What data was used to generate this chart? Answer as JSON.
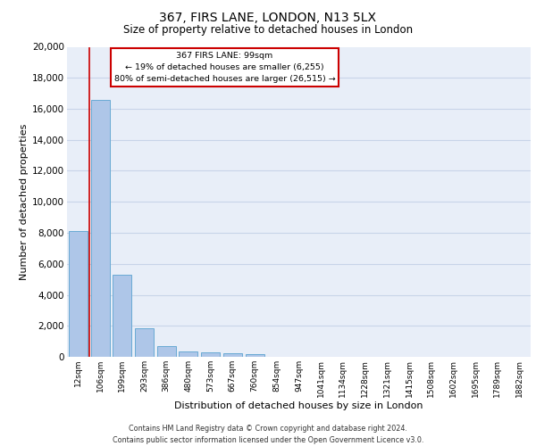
{
  "title_line1": "367, FIRS LANE, LONDON, N13 5LX",
  "title_line2": "Size of property relative to detached houses in London",
  "xlabel": "Distribution of detached houses by size in London",
  "ylabel": "Number of detached properties",
  "categories": [
    "12sqm",
    "106sqm",
    "199sqm",
    "293sqm",
    "386sqm",
    "480sqm",
    "573sqm",
    "667sqm",
    "760sqm",
    "854sqm",
    "947sqm",
    "1041sqm",
    "1134sqm",
    "1228sqm",
    "1321sqm",
    "1415sqm",
    "1508sqm",
    "1602sqm",
    "1695sqm",
    "1789sqm",
    "1882sqm"
  ],
  "values": [
    8100,
    16600,
    5300,
    1850,
    700,
    350,
    270,
    210,
    180,
    0,
    0,
    0,
    0,
    0,
    0,
    0,
    0,
    0,
    0,
    0,
    0
  ],
  "bar_color": "#aec6e8",
  "bar_edge_color": "#6aaad4",
  "annotation_text_line1": "367 FIRS LANE: 99sqm",
  "annotation_text_line2": "← 19% of detached houses are smaller (6,255)",
  "annotation_text_line3": "80% of semi-detached houses are larger (26,515) →",
  "annotation_box_color": "#ffffff",
  "annotation_box_edge": "#cc0000",
  "vline_color": "#cc0000",
  "ylim": [
    0,
    20000
  ],
  "yticks": [
    0,
    2000,
    4000,
    6000,
    8000,
    10000,
    12000,
    14000,
    16000,
    18000,
    20000
  ],
  "grid_color": "#c8d4e8",
  "bg_color": "#e8eef8",
  "footer_line1": "Contains HM Land Registry data © Crown copyright and database right 2024.",
  "footer_line2": "Contains public sector information licensed under the Open Government Licence v3.0."
}
